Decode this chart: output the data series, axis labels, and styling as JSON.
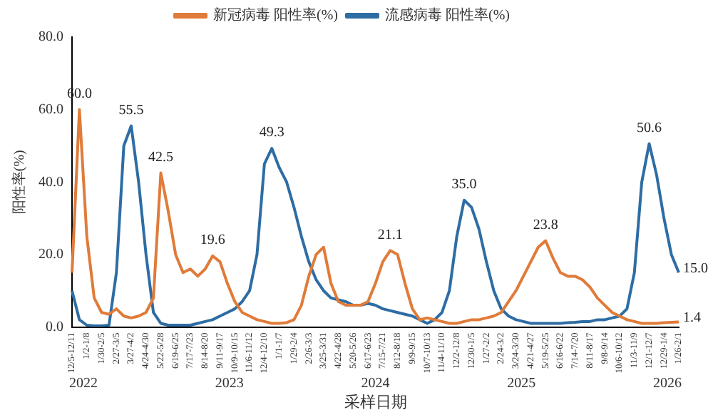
{
  "chart_data": {
    "type": "line",
    "xlabel": "采样日期",
    "ylabel": "阳性率(%)",
    "categories": [
      "12/5-12/11",
      null,
      "1/2-1/8",
      null,
      "1/30-2/5",
      null,
      "2/27-3/5",
      null,
      "3/27-4/2",
      null,
      "4/24-4/30",
      null,
      "5/22-5/28",
      null,
      "6/19-6/25",
      null,
      "7/17-7/23",
      null,
      "8/14-8/20",
      null,
      "9/11-9/17",
      null,
      "10/9-10/15",
      null,
      "11/6-11/12",
      null,
      "12/4-12/10",
      null,
      "1/1-1/7",
      null,
      "1/29-2/4",
      null,
      "2/26-3/3",
      null,
      "3/25-3/31",
      null,
      "4/22-4/28",
      null,
      "5/20-5/26",
      null,
      "6/17-6/23",
      null,
      "7/15-7/21",
      null,
      "8/12-8/18",
      null,
      "9/9-9/15",
      null,
      "10/7-10/13",
      null,
      "11/4-11/10",
      null,
      "12/2-12/8",
      null,
      "12/30-1/5",
      null,
      "1/27-2/2",
      null,
      "2/24-3/2",
      null,
      "3/24-3/30",
      null,
      "4/21-4/27",
      null,
      "5/19-5/25",
      null,
      "6/16-6/22",
      null,
      "7/14-7/20",
      null,
      "8/11-8/17",
      null,
      "9/8-9/14",
      null,
      "10/6-10/12",
      null,
      "11/3-11/9",
      null,
      "12/1-12/7",
      null,
      "12/29-1/4",
      null,
      "1/26-2/1"
    ],
    "series": [
      {
        "name": "新冠病毒 阳性率(%)",
        "color": "#e07b39",
        "values": [
          15,
          60.0,
          25,
          8,
          4,
          3.5,
          5,
          3,
          2.5,
          3,
          4,
          8,
          42.5,
          32,
          20,
          15,
          16,
          14,
          16,
          19.6,
          18,
          12,
          7,
          4,
          3,
          2,
          1.5,
          1,
          1,
          1.2,
          2,
          6,
          14,
          20,
          22,
          12,
          7,
          6,
          6,
          6,
          7,
          12,
          18,
          21.1,
          20,
          12,
          5,
          2,
          2.5,
          2,
          1.5,
          1,
          1,
          1.5,
          2,
          2,
          2.5,
          3,
          4,
          7,
          10,
          14,
          18,
          22,
          23.8,
          19,
          15,
          14,
          14,
          13,
          11,
          8,
          6,
          4,
          3,
          2,
          1.5,
          1,
          1,
          1,
          1.2,
          1.3,
          1.4
        ],
        "value_labels": [
          null,
          "60.0",
          null,
          null,
          null,
          null,
          null,
          null,
          null,
          null,
          null,
          null,
          "42.5",
          null,
          null,
          null,
          null,
          null,
          null,
          "19.6",
          null,
          null,
          null,
          null,
          null,
          null,
          null,
          null,
          null,
          null,
          null,
          null,
          null,
          null,
          null,
          null,
          null,
          null,
          null,
          null,
          null,
          null,
          null,
          "21.1",
          null,
          null,
          null,
          null,
          null,
          null,
          null,
          null,
          null,
          null,
          null,
          null,
          null,
          null,
          null,
          null,
          null,
          null,
          null,
          null,
          "23.8",
          null,
          null,
          null,
          null,
          null,
          null,
          null,
          null,
          null,
          null,
          null,
          null,
          null,
          null,
          null,
          null,
          null,
          "1.4"
        ]
      },
      {
        "name": "流感病毒 阳性率(%)",
        "color": "#2e6da4",
        "values": [
          10,
          2,
          0.5,
          0.3,
          0.3,
          0.5,
          15,
          50,
          55.5,
          40,
          20,
          4,
          1,
          0.5,
          0.5,
          0.5,
          0.5,
          1,
          1.5,
          2,
          3,
          4,
          5,
          7,
          10,
          20,
          45,
          49.3,
          44,
          40,
          33,
          25,
          18,
          13,
          10,
          8,
          7.5,
          7,
          6,
          6,
          6.5,
          6,
          5,
          4.5,
          4,
          3.5,
          3,
          2,
          1,
          2,
          4,
          10,
          25,
          35.0,
          33,
          27,
          18,
          10,
          5,
          3,
          2,
          1.5,
          1,
          1,
          1,
          1,
          1,
          1.2,
          1.3,
          1.5,
          1.5,
          2,
          2,
          2.5,
          3,
          5,
          15,
          40,
          50.6,
          42,
          30,
          20,
          15.0
        ],
        "value_labels": [
          null,
          null,
          null,
          null,
          null,
          null,
          null,
          null,
          "55.5",
          null,
          null,
          null,
          null,
          null,
          null,
          null,
          null,
          null,
          null,
          null,
          null,
          null,
          null,
          null,
          null,
          null,
          null,
          "49.3",
          null,
          null,
          null,
          null,
          null,
          null,
          null,
          null,
          null,
          null,
          null,
          null,
          null,
          null,
          null,
          null,
          null,
          null,
          null,
          null,
          null,
          null,
          null,
          null,
          null,
          "35.0",
          null,
          null,
          null,
          null,
          null,
          null,
          null,
          null,
          null,
          null,
          null,
          null,
          null,
          null,
          null,
          null,
          null,
          null,
          null,
          null,
          null,
          null,
          null,
          null,
          "50.6",
          null,
          null,
          null,
          "15.0"
        ]
      }
    ],
    "ylim": [
      0,
      80
    ],
    "yticks": [
      {
        "value": 0,
        "label": "0.0"
      },
      {
        "value": 20,
        "label": "20.0"
      },
      {
        "value": 40,
        "label": "40.0"
      },
      {
        "value": 60,
        "label": "60.0"
      },
      {
        "value": 80,
        "label": "80.0"
      }
    ],
    "annotations": [
      "2022",
      "2023",
      "2024",
      "2025",
      "2026"
    ],
    "grid": false,
    "legend": "top",
    "marker": "none",
    "line_style": "solid"
  }
}
